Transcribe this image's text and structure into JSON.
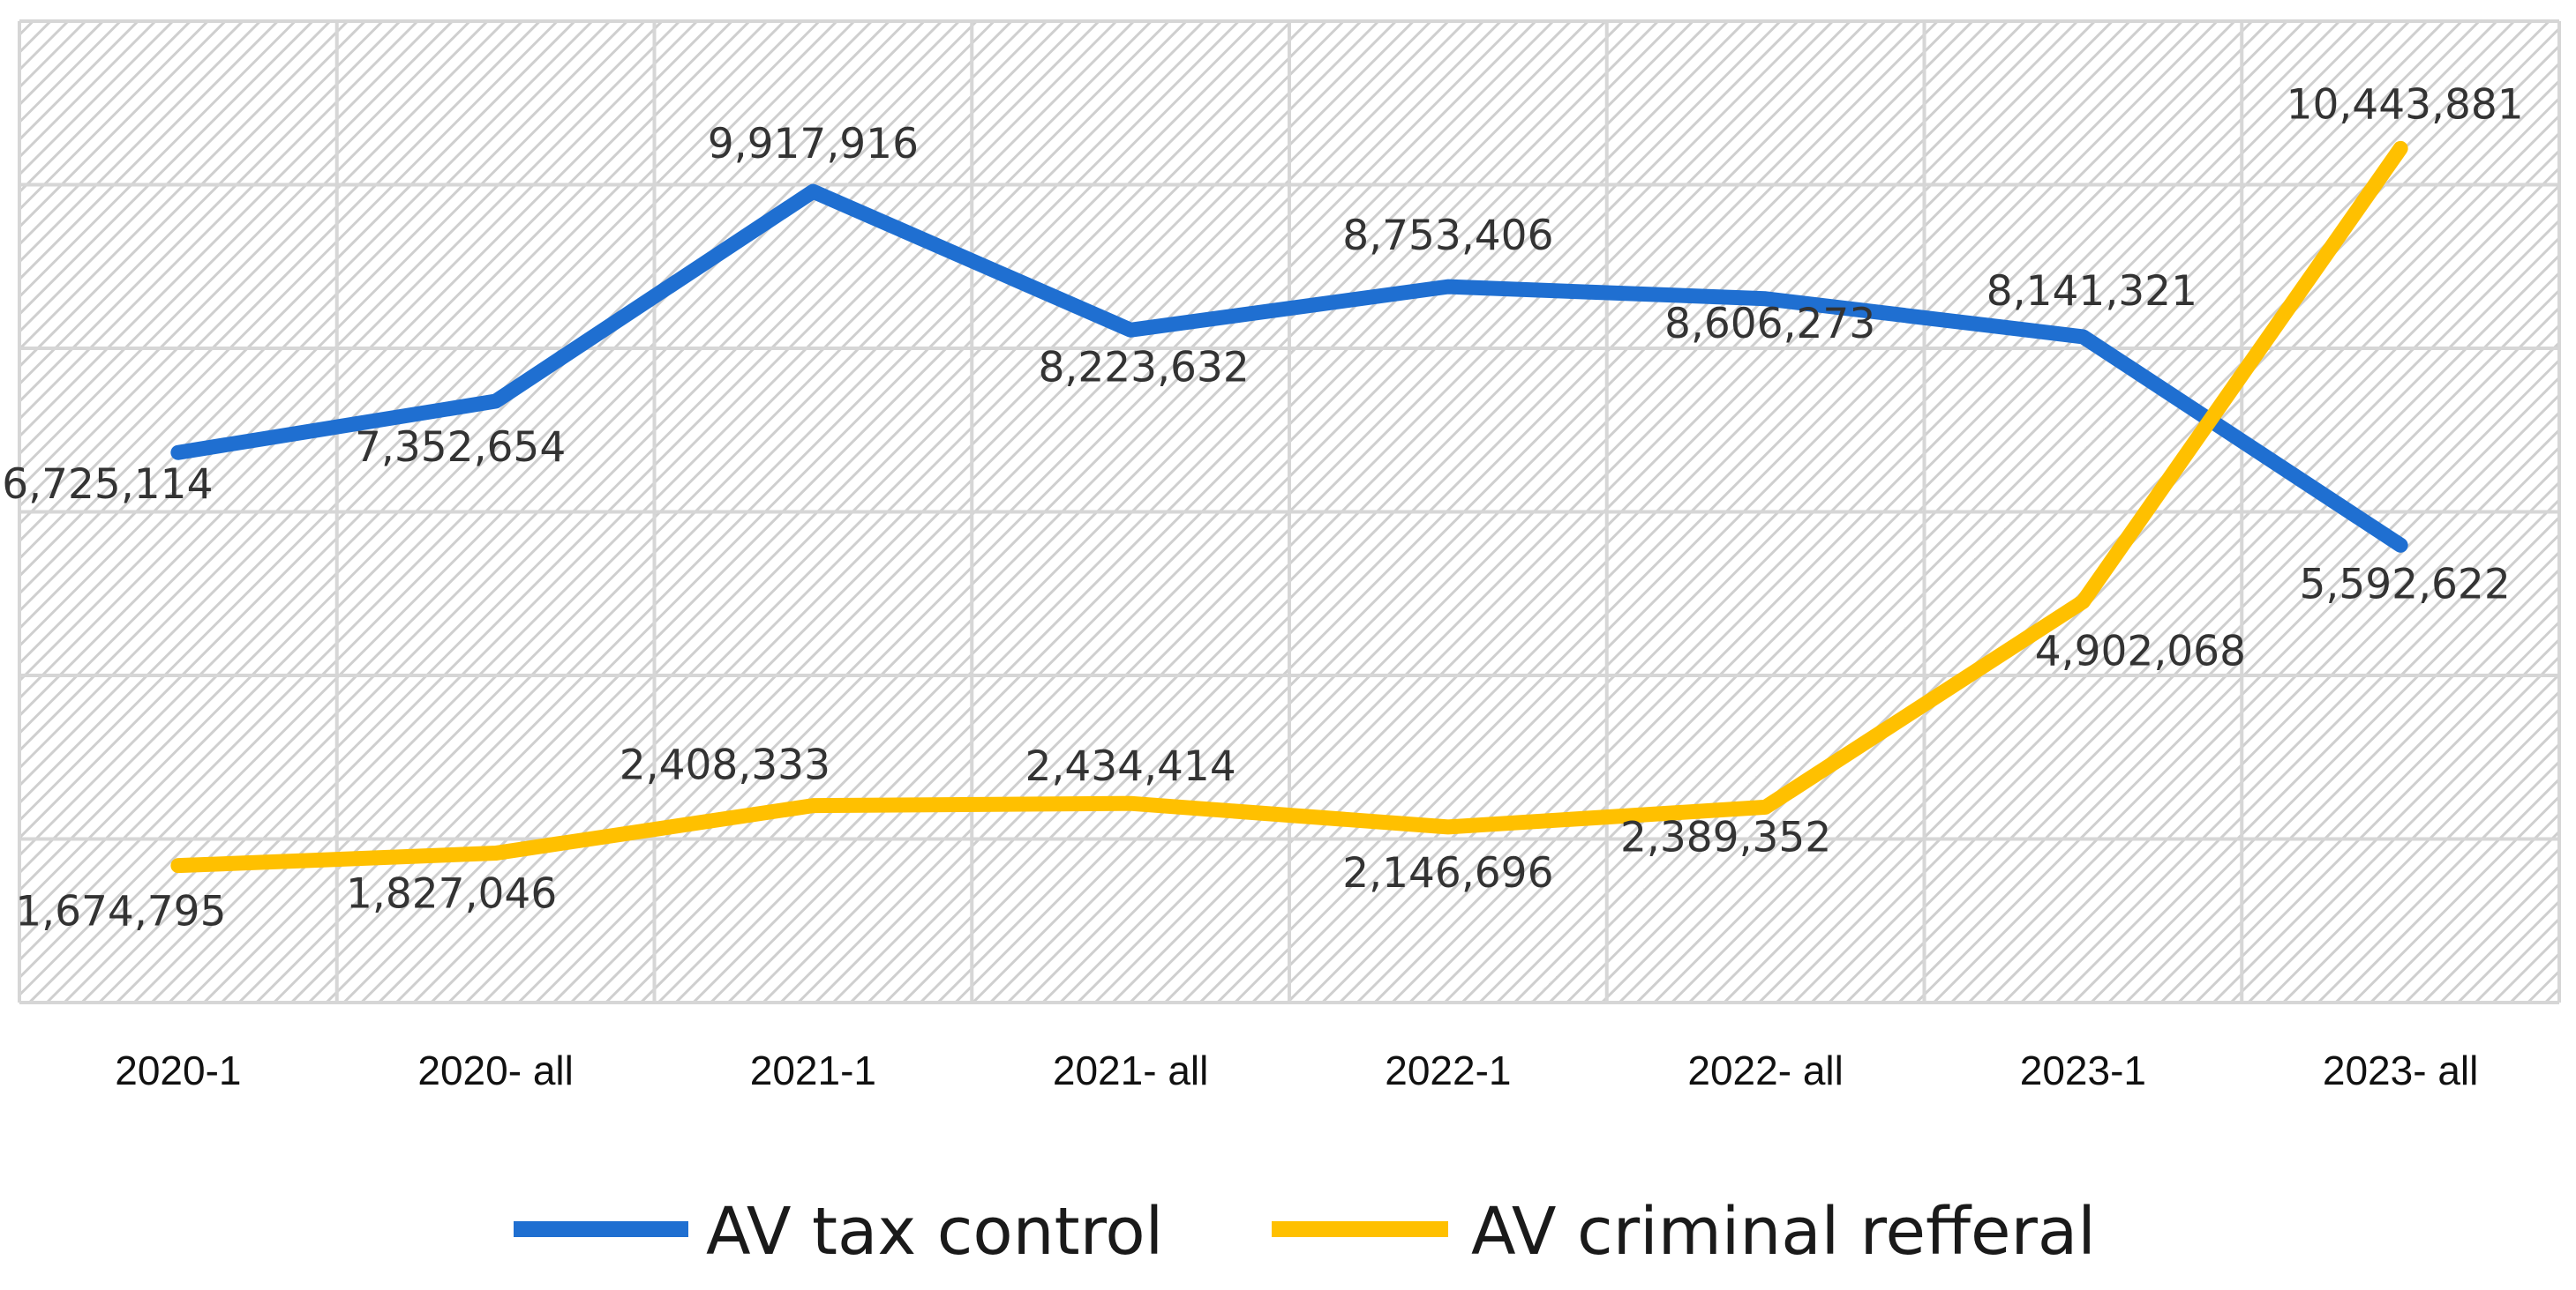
{
  "chart_data": {
    "type": "line",
    "title": "",
    "xlabel": "",
    "ylabel": "",
    "categories": [
      "2020-1",
      "2020- all",
      "2021-1",
      "2021- all",
      "2022-1",
      "2022- all",
      "2023-1",
      "2023- all"
    ],
    "ylim": [
      0,
      12000000
    ],
    "grid": true,
    "legend_position": "bottom",
    "series": [
      {
        "name": "AV tax control",
        "color": "#1f6fd1",
        "values": [
          6725114,
          7352654,
          9917916,
          8223632,
          8753406,
          8606273,
          8141321,
          5592622
        ],
        "labels": [
          "6,725,114",
          "7,352,654",
          "9,917,916",
          "8,223,632",
          "8,753,406",
          "8,606,273",
          "8,141,321",
          "5,592,622"
        ]
      },
      {
        "name": "AV criminal refferal",
        "color": "#ffc000",
        "values": [
          1674795,
          1827046,
          2408333,
          2434414,
          2146696,
          2389352,
          4902068,
          10443881
        ],
        "labels": [
          "1,674,795",
          "1,827,046",
          "2,408,333",
          "2,434,414",
          "2,146,696",
          "2,389,352",
          "4,902,068",
          "10,443,881"
        ]
      }
    ]
  }
}
